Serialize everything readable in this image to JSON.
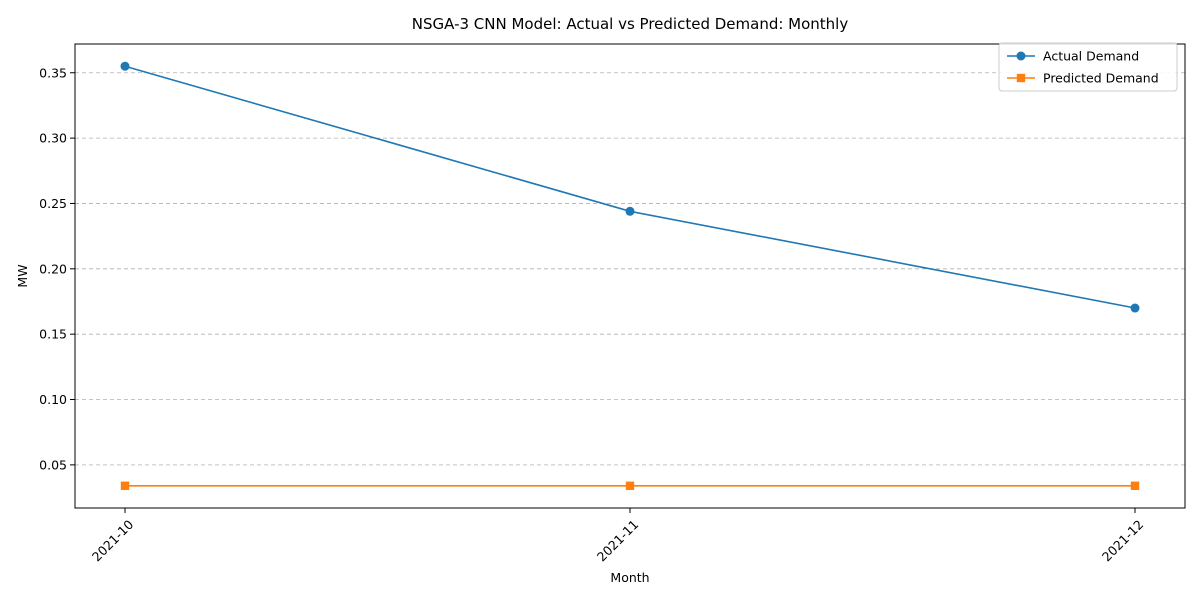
{
  "chart_data": {
    "type": "line",
    "title": "NSGA-3 CNN Model: Actual vs Predicted Demand: Monthly",
    "xlabel": "Month",
    "ylabel": "MW",
    "categories": [
      "2021-10",
      "2021-11",
      "2021-12"
    ],
    "yticks": [
      "0.05",
      "0.10",
      "0.15",
      "0.20",
      "0.25",
      "0.30",
      "0.35"
    ],
    "ylim": [
      0.017,
      0.372
    ],
    "grid": "y-dashed",
    "legend_position": "top-right",
    "series": [
      {
        "name": "Actual Demand",
        "values": [
          0.355,
          0.244,
          0.17
        ],
        "color": "#1f77b4",
        "marker": "circle"
      },
      {
        "name": "Predicted Demand",
        "values": [
          0.034,
          0.034,
          0.034
        ],
        "color": "#ff7f0e",
        "marker": "square"
      }
    ]
  }
}
